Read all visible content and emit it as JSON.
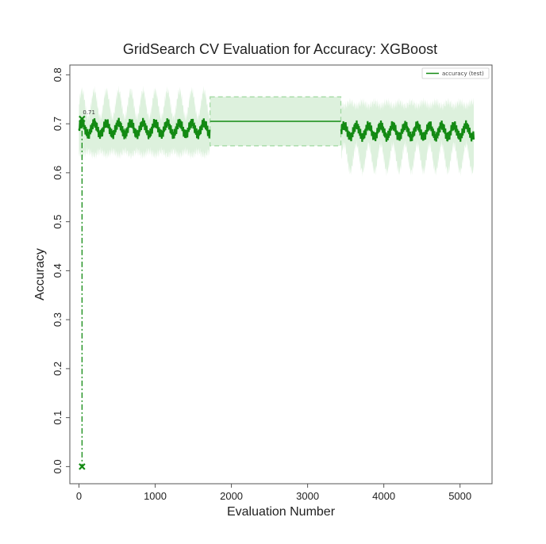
{
  "chart_data": {
    "type": "line",
    "title": "GridSearch CV Evaluation for Accuracy: XGBoost",
    "xlabel": "Evaluation Number",
    "ylabel": "Accuracy",
    "xlim": [
      -120,
      5420
    ],
    "ylim": [
      -0.035,
      0.82
    ],
    "xticks": [
      0,
      1000,
      2000,
      3000,
      4000,
      5000
    ],
    "yticks": [
      0.0,
      0.1,
      0.2,
      0.3,
      0.4,
      0.5,
      0.6,
      0.7,
      0.8
    ],
    "grid": false,
    "legend_position": "top-right",
    "series": [
      {
        "name": "accuracy (test)",
        "color": "#138a13",
        "band_color": "#9fd89f",
        "segments": [
          {
            "x_start": 0,
            "x_end": 1720,
            "mean": 0.69,
            "oscillation": 0.02,
            "band_halfwidth": 0.05
          },
          {
            "x_start": 1720,
            "x_end": 3440,
            "mean": 0.705,
            "oscillation": 0.0,
            "band_halfwidth": 0.05
          },
          {
            "x_start": 3440,
            "x_end": 5180,
            "mean": 0.685,
            "oscillation": 0.02,
            "band_halfwidth": 0.055
          }
        ]
      }
    ],
    "markers": [
      {
        "x": 40,
        "y": 0.71,
        "label": "0.71"
      },
      {
        "x": 40,
        "y": 0.0,
        "label": ""
      }
    ]
  }
}
